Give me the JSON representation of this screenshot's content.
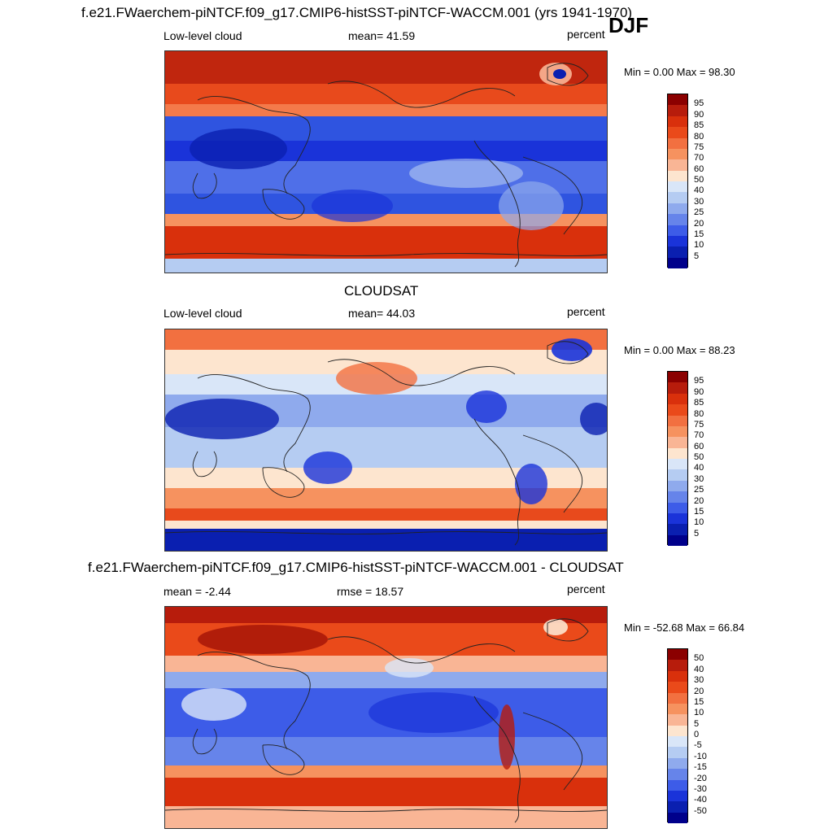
{
  "season": "DJF",
  "panels": [
    {
      "title": "f.e21.FWaerchem-piNTCF.f09_g17.CMIP6-histSST-piNTCF-WACCM.001 (yrs 1941-1970)",
      "left_label": "Low-level cloud",
      "center_label": "mean=  41.59",
      "units": "percent",
      "minmax": "Min =   0.00 Max =  98.30",
      "colorbar": {
        "labels": [
          "95",
          "90",
          "85",
          "80",
          "75",
          "70",
          "60",
          "50",
          "40",
          "30",
          "25",
          "20",
          "15",
          "10",
          "5"
        ],
        "colors": [
          "#8b0000",
          "#b71c0c",
          "#d9300c",
          "#ea4a1a",
          "#f27040",
          "#f6925f",
          "#f9b595",
          "#fde5cf",
          "#d9e6f8",
          "#b5ccf2",
          "#8faaed",
          "#6684ea",
          "#3d5ce8",
          "#1a33d9",
          "#0a1fb0",
          "#00008b"
        ]
      },
      "map_style": "model"
    },
    {
      "title": "CLOUDSAT",
      "left_label": "Low-level cloud",
      "center_label": "mean=  44.03",
      "units": "percent",
      "minmax": "Min =   0.00 Max =  88.23",
      "colorbar": {
        "labels": [
          "95",
          "90",
          "85",
          "80",
          "75",
          "70",
          "60",
          "50",
          "40",
          "30",
          "25",
          "20",
          "15",
          "10",
          "5"
        ],
        "colors": [
          "#8b0000",
          "#b71c0c",
          "#d9300c",
          "#ea4a1a",
          "#f27040",
          "#f6925f",
          "#f9b595",
          "#fde5cf",
          "#d9e6f8",
          "#b5ccf2",
          "#8faaed",
          "#6684ea",
          "#3d5ce8",
          "#1a33d9",
          "#0a1fb0",
          "#00008b"
        ]
      },
      "map_style": "obs"
    },
    {
      "title": "f.e21.FWaerchem-piNTCF.f09_g17.CMIP6-histSST-piNTCF-WACCM.001 - CLOUDSAT",
      "left_label": "mean =  -2.44",
      "center_label": "rmse =  18.57",
      "units": "percent",
      "minmax": "Min = -52.68 Max =  66.84",
      "colorbar": {
        "labels": [
          "50",
          "40",
          "30",
          "20",
          "15",
          "10",
          "5",
          "0",
          "-5",
          "-10",
          "-15",
          "-20",
          "-30",
          "-40",
          "-50"
        ],
        "colors": [
          "#8b0000",
          "#b71c0c",
          "#d9300c",
          "#ea4a1a",
          "#f27040",
          "#f6925f",
          "#f9b595",
          "#fde5cf",
          "#d9e6f8",
          "#b5ccf2",
          "#8faaed",
          "#6684ea",
          "#3d5ce8",
          "#1a33d9",
          "#0a1fb0",
          "#00008b"
        ]
      },
      "map_style": "diff"
    }
  ]
}
